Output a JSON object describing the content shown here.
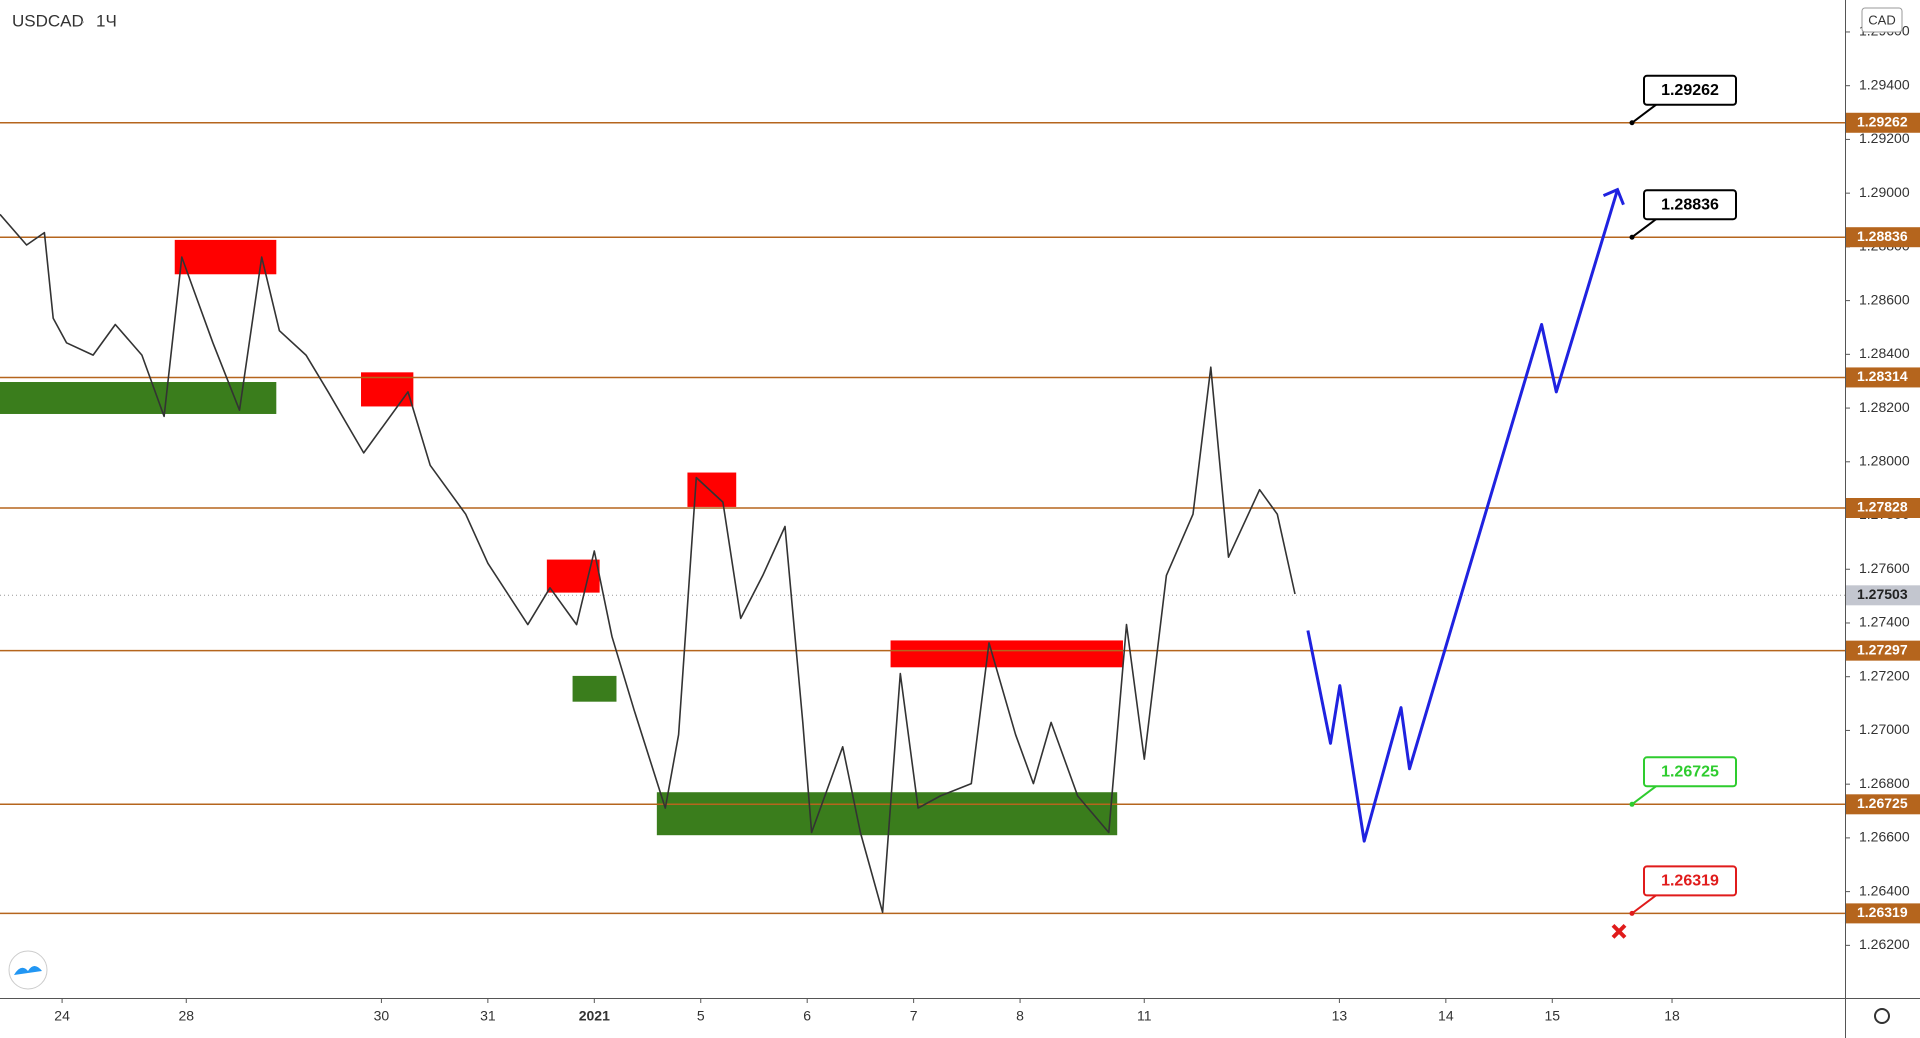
{
  "chart_data": {
    "type": "line",
    "title": "USDCAD",
    "interval": "1Ч",
    "currency": "CAD",
    "color": "#333333",
    "x": [
      0,
      6,
      10,
      12,
      15,
      21,
      26,
      32,
      37,
      41,
      44,
      48,
      54,
      59,
      63,
      69,
      74,
      82,
      86,
      92,
      97,
      105,
      110,
      119,
      124,
      130,
      134,
      138,
      143,
      150,
      153,
      157,
      163,
      167,
      172,
      177,
      181,
      183,
      190,
      194,
      199,
      203,
      207,
      212,
      219,
      223,
      229,
      233,
      237,
      243,
      250,
      254,
      258,
      263,
      269,
      273,
      277,
      284,
      288,
      292
    ],
    "values": [
      1.28921,
      1.28807,
      1.28853,
      1.28534,
      1.28443,
      1.28397,
      1.28511,
      1.28397,
      1.28169,
      1.28762,
      1.28625,
      1.28443,
      1.28192,
      1.28762,
      1.28488,
      1.28397,
      1.2826,
      1.28033,
      1.28124,
      1.2826,
      1.27987,
      1.27805,
      1.27622,
      1.27394,
      1.27531,
      1.27394,
      1.27668,
      1.27349,
      1.27075,
      1.26711,
      1.26984,
      1.27941,
      1.2785,
      1.27417,
      1.27577,
      1.27759,
      1.2703,
      1.2662,
      1.26939,
      1.2662,
      1.26323,
      1.27212,
      1.26711,
      1.26756,
      1.26802,
      1.27326,
      1.26984,
      1.26802,
      1.2703,
      1.26756,
      1.2662,
      1.27394,
      1.26893,
      1.27577,
      1.27805,
      1.28352,
      1.27645,
      1.27896,
      1.27805,
      1.27508
    ],
    "projection_x": [
      294.9,
      300,
      302.1,
      307.6,
      315.9,
      317.8,
      347.6,
      350.9,
      364.7
    ],
    "projection_values": [
      1.27372,
      1.26952,
      1.27167,
      1.26588,
      1.27085,
      1.26857,
      1.28511,
      1.2826,
      1.29013
    ],
    "projection_color": "#1f22e0",
    "last_price": 1.27503,
    "levels": [
      {
        "value": 1.29262,
        "callout_color": "#000000"
      },
      {
        "value": 1.28836,
        "callout_color": "#000000"
      },
      {
        "value": 1.28314
      },
      {
        "value": 1.27828
      },
      {
        "value": 1.27297
      },
      {
        "value": 1.26725,
        "callout_color": "#2ecc2e"
      },
      {
        "value": 1.26319,
        "callout_color": "#e01b1b"
      }
    ],
    "level_color": "#b5651d",
    "zones": [
      {
        "x0": 39.4,
        "x1": 62.3,
        "y0": 1.28698,
        "y1": 1.28826,
        "color": "#ff0000"
      },
      {
        "x0": 0,
        "x1": 62.3,
        "y0": 1.28178,
        "y1": 1.28297,
        "color": "#3a7d1c"
      },
      {
        "x0": 81.4,
        "x1": 93.2,
        "y0": 1.28206,
        "y1": 1.28333,
        "color": "#ff0000"
      },
      {
        "x0": 155,
        "x1": 166,
        "y0": 1.27832,
        "y1": 1.2796,
        "color": "#ff0000"
      },
      {
        "x0": 123.3,
        "x1": 135.2,
        "y0": 1.27513,
        "y1": 1.27636,
        "color": "#ff0000"
      },
      {
        "x0": 129.1,
        "x1": 139,
        "y0": 1.27107,
        "y1": 1.27203,
        "color": "#3a7d1c"
      },
      {
        "x0": 200.8,
        "x1": 253.2,
        "y0": 1.27235,
        "y1": 1.27335,
        "color": "#ff0000"
      },
      {
        "x0": 148.1,
        "x1": 251.9,
        "y0": 1.2661,
        "y1": 1.2677,
        "color": "#3a7d1c"
      }
    ],
    "xlim": [
      0,
      416
    ],
    "ylim": [
      1.26004,
      1.29719
    ],
    "xticks": [
      {
        "value": 14,
        "label": "24"
      },
      {
        "value": 42,
        "label": "28"
      },
      {
        "value": 86,
        "label": "30"
      },
      {
        "value": 110,
        "label": "31"
      },
      {
        "value": 134,
        "label": "2021"
      },
      {
        "value": 158,
        "label": "5"
      },
      {
        "value": 182,
        "label": "6"
      },
      {
        "value": 206,
        "label": "7"
      },
      {
        "value": 230,
        "label": "8"
      },
      {
        "value": 258,
        "label": "11"
      },
      {
        "value": 302,
        "label": "13"
      },
      {
        "value": 326,
        "label": "14"
      },
      {
        "value": 350,
        "label": "15"
      },
      {
        "value": 377,
        "label": "18"
      }
    ],
    "yticks": [
      {
        "value": 1.262,
        "label": "1.26200"
      },
      {
        "value": 1.264,
        "label": "1.26400"
      },
      {
        "value": 1.266,
        "label": "1.26600"
      },
      {
        "value": 1.268,
        "label": "1.26800"
      },
      {
        "value": 1.27,
        "label": "1.27000"
      },
      {
        "value": 1.272,
        "label": "1.27200"
      },
      {
        "value": 1.274,
        "label": "1.27400"
      },
      {
        "value": 1.276,
        "label": "1.27600"
      },
      {
        "value": 1.278,
        "label": "1.27800"
      },
      {
        "value": 1.28,
        "label": "1.28000"
      },
      {
        "value": 1.282,
        "label": "1.28200"
      },
      {
        "value": 1.284,
        "label": "1.28400"
      },
      {
        "value": 1.286,
        "label": "1.28600"
      },
      {
        "value": 1.288,
        "label": "1.28800"
      },
      {
        "value": 1.29,
        "label": "1.29000"
      },
      {
        "value": 1.292,
        "label": "1.29200"
      },
      {
        "value": 1.294,
        "label": "1.29400"
      },
      {
        "value": 1.296,
        "label": "1.29600"
      }
    ]
  }
}
